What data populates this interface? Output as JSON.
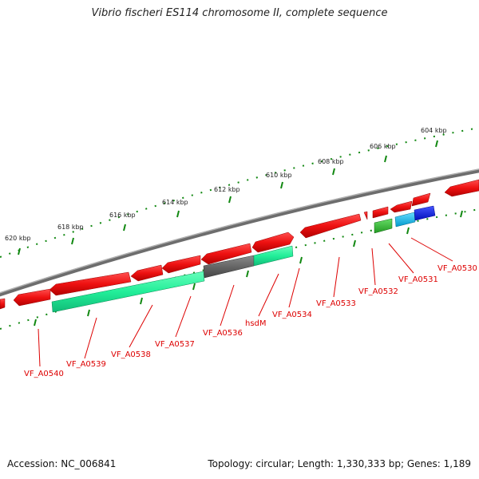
{
  "title": "Vibrio fischeri ES114 chromosome II, complete sequence",
  "footer": {
    "accession": "Accession: NC_006841",
    "summary": "Topology: circular; Length: 1,330,333 bp; Genes: 1,189"
  },
  "colors": {
    "cds": "#ee1111",
    "gene_main": "#22ee99",
    "gene_dark": "#666666",
    "gene_green": "#33bb33",
    "gene_cyan": "#11bbee",
    "gene_blue": "#1122ee",
    "backbone": "#808080",
    "ticks": "#118811",
    "label": "#dd0000"
  },
  "scale_labels": [
    "604 kbp",
    "606 kbp",
    "608 kbp",
    "610 kbp",
    "612 kbp",
    "614 kbp",
    "616 kbp",
    "618 kbp",
    "620 kbp"
  ],
  "gene_labels": [
    "VF_A0530",
    "VF_A0531",
    "VF_A0532",
    "VF_A0533",
    "VF_A0534",
    "hsdM",
    "VF_A0536",
    "VF_A0537",
    "VF_A0538",
    "VF_A0539",
    "VF_A0540"
  ]
}
